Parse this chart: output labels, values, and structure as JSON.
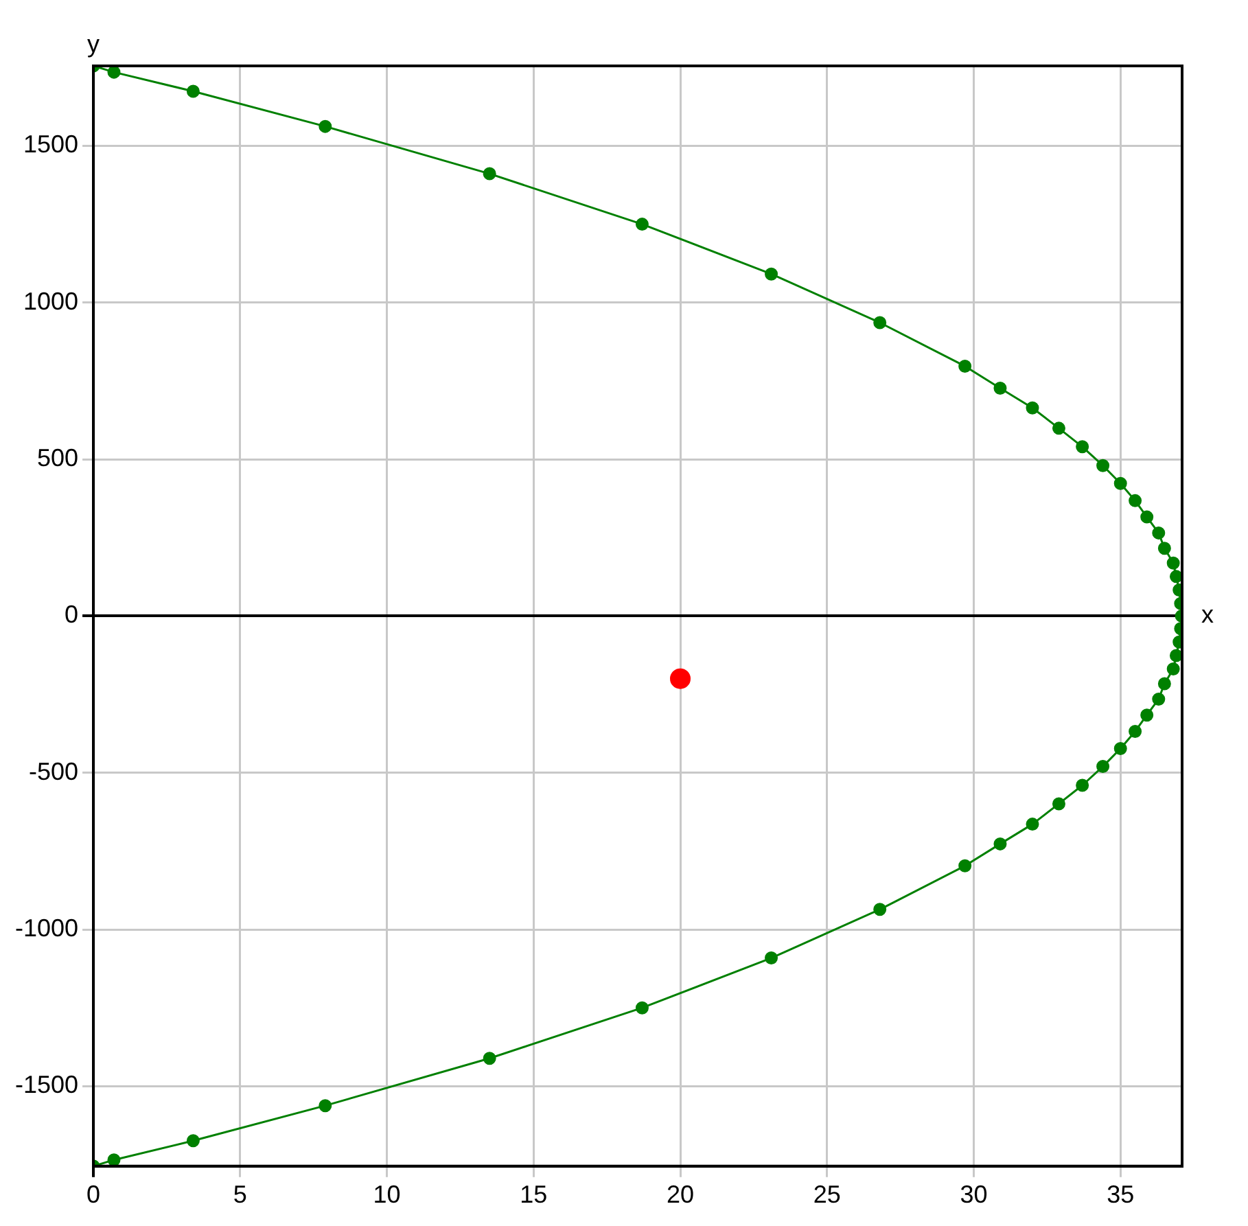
{
  "chart_data": {
    "type": "line",
    "xlabel": "x",
    "ylabel": "y",
    "xlim": [
      0,
      37.1
    ],
    "ylim": [
      -1755,
      1755
    ],
    "xticks": [
      0,
      5,
      10,
      15,
      20,
      25,
      30,
      35
    ],
    "yticks": [
      -1500,
      -1000,
      -500,
      0,
      500,
      1000,
      1500
    ],
    "grid": true,
    "legend": false,
    "marker": "circle",
    "line_style": "solid",
    "series": [
      {
        "color": "#008000",
        "x": [
          0,
          0.7,
          3.4,
          7.9,
          13.5,
          18.7,
          23.1,
          26.8,
          29.7,
          30.9,
          32.0,
          32.9,
          33.7,
          34.4,
          35.0,
          35.5,
          35.9,
          36.3,
          36.5,
          36.8,
          36.9,
          37.0,
          37.05,
          37.08,
          37.05,
          37.0,
          36.9,
          36.8,
          36.5,
          36.3,
          35.9,
          35.5,
          35.0,
          34.4,
          33.7,
          32.9,
          32.0,
          30.9,
          29.7,
          26.8,
          23.1,
          18.7,
          13.5,
          7.9,
          3.4,
          0.7,
          0
        ],
        "values": [
          1755,
          1735,
          1674,
          1562,
          1411,
          1250,
          1091,
          936,
          797,
          727,
          664,
          599,
          540,
          480,
          423,
          368,
          316,
          265,
          216,
          169,
          126,
          83,
          40,
          0,
          -40,
          -83,
          -126,
          -169,
          -216,
          -265,
          -316,
          -368,
          -423,
          -480,
          -540,
          -599,
          -664,
          -727,
          -797,
          -936,
          -1091,
          -1250,
          -1411,
          -1562,
          -1674,
          -1735,
          -1755
        ]
      },
      {
        "type": "scatter",
        "color": "#ff0000",
        "x": [
          20.0
        ],
        "values": [
          -200
        ]
      }
    ]
  }
}
